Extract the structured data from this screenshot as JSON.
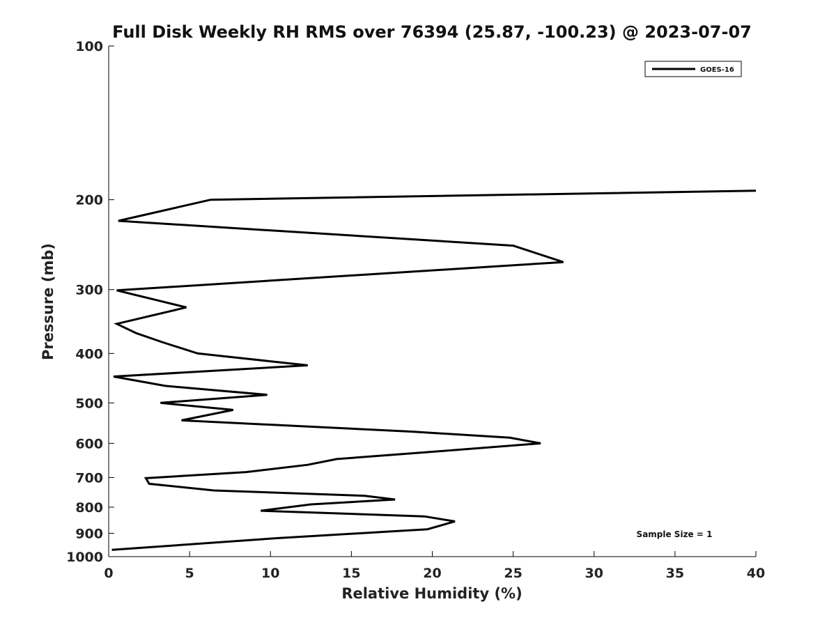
{
  "chart_data": {
    "type": "line",
    "title": "Full Disk Weekly RH RMS over 76394 (25.87, -100.23) @ 2023-07-07",
    "xlabel": "Relative Humidity (%)",
    "ylabel": "Pressure (mb)",
    "xlim": [
      0,
      40
    ],
    "ylim": [
      1000,
      100
    ],
    "y_scale": "log",
    "y_inverted": true,
    "x_ticks": [
      0,
      5,
      10,
      15,
      20,
      25,
      30,
      35,
      40
    ],
    "x_tick_labels": [
      "0",
      "5",
      "10",
      "15",
      "20",
      "25",
      "30",
      "35",
      "40"
    ],
    "y_ticks": [
      100,
      200,
      300,
      400,
      500,
      600,
      700,
      800,
      900,
      1000
    ],
    "y_tick_labels": [
      "100",
      "200",
      "300",
      "400",
      "500",
      "600",
      "700",
      "800",
      "900",
      "1000"
    ],
    "grid": false,
    "legend_position": "top-right",
    "series": [
      {
        "name": "GOES-16",
        "color": "#000000",
        "points": [
          [
            40.0,
            192
          ],
          [
            6.3,
            200
          ],
          [
            0.6,
            220
          ],
          [
            25.0,
            246
          ],
          [
            28.1,
            265
          ],
          [
            0.5,
            301
          ],
          [
            4.8,
            325
          ],
          [
            0.5,
            350
          ],
          [
            1.7,
            365
          ],
          [
            3.3,
            380
          ],
          [
            5.5,
            400
          ],
          [
            12.3,
            422
          ],
          [
            0.3,
            444
          ],
          [
            3.5,
            463
          ],
          [
            9.8,
            482
          ],
          [
            3.2,
            500
          ],
          [
            7.7,
            516
          ],
          [
            4.5,
            541
          ],
          [
            18.7,
            569
          ],
          [
            24.8,
            585
          ],
          [
            26.7,
            600
          ],
          [
            19.5,
            625
          ],
          [
            14.1,
            644
          ],
          [
            12.3,
            661
          ],
          [
            8.5,
            683
          ],
          [
            2.3,
            702
          ],
          [
            2.5,
            720
          ],
          [
            6.5,
            742
          ],
          [
            15.8,
            760
          ],
          [
            17.7,
            773
          ],
          [
            12.5,
            790
          ],
          [
            9.4,
            813
          ],
          [
            19.5,
            834
          ],
          [
            21.4,
            853
          ],
          [
            19.7,
            884
          ],
          [
            10.4,
            920
          ],
          [
            0.2,
            970
          ]
        ]
      }
    ],
    "annotations": [
      "Sample Size = 1"
    ]
  }
}
